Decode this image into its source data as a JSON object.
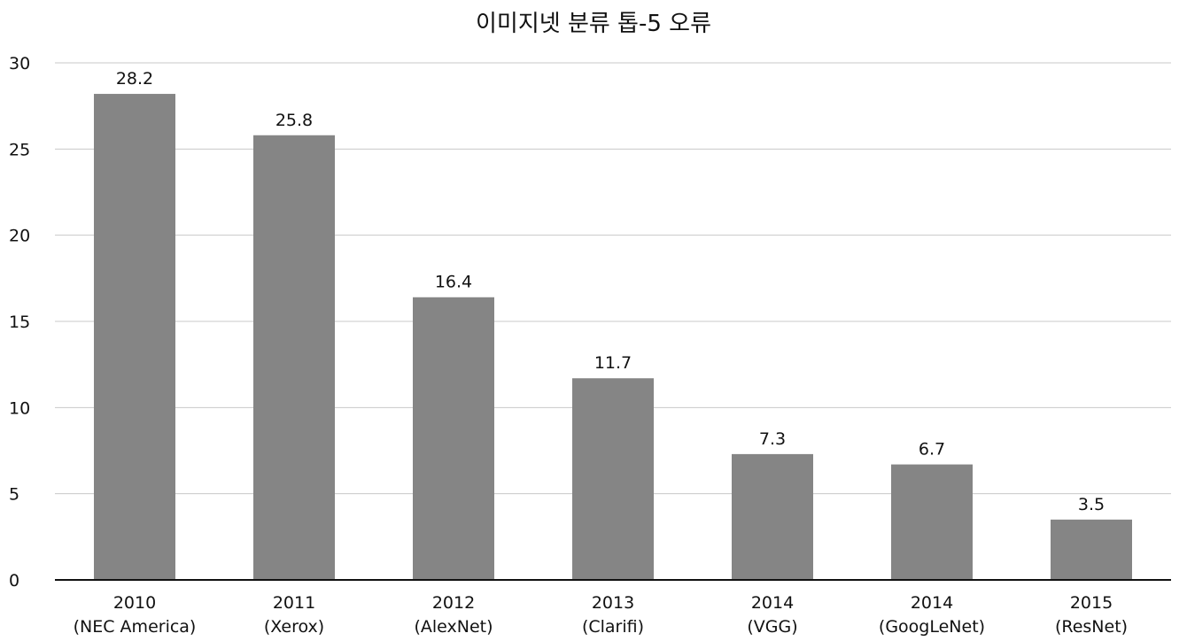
{
  "chart_data": {
    "type": "bar",
    "title": "이미지넷 분류 톱-5 오류",
    "xlabel": "",
    "ylabel": "",
    "ylim": [
      0,
      30
    ],
    "yticks": [
      0,
      5,
      10,
      15,
      20,
      25,
      30
    ],
    "grid": true,
    "legend": "none",
    "bar_color": "#858585",
    "categories": [
      [
        "2010",
        "(NEC America)"
      ],
      [
        "2011",
        "(Xerox)"
      ],
      [
        "2012",
        "(AlexNet)"
      ],
      [
        "2013",
        "(Clarifi)"
      ],
      [
        "2014",
        "(VGG)"
      ],
      [
        "2014",
        "(GoogLeNet)"
      ],
      [
        "2015",
        "(ResNet)"
      ]
    ],
    "values": [
      28.2,
      25.8,
      16.4,
      11.7,
      7.3,
      6.7,
      3.5
    ],
    "data_labels": [
      "28.2",
      "25.8",
      "16.4",
      "11.7",
      "7.3",
      "6.7",
      "3.5"
    ]
  }
}
